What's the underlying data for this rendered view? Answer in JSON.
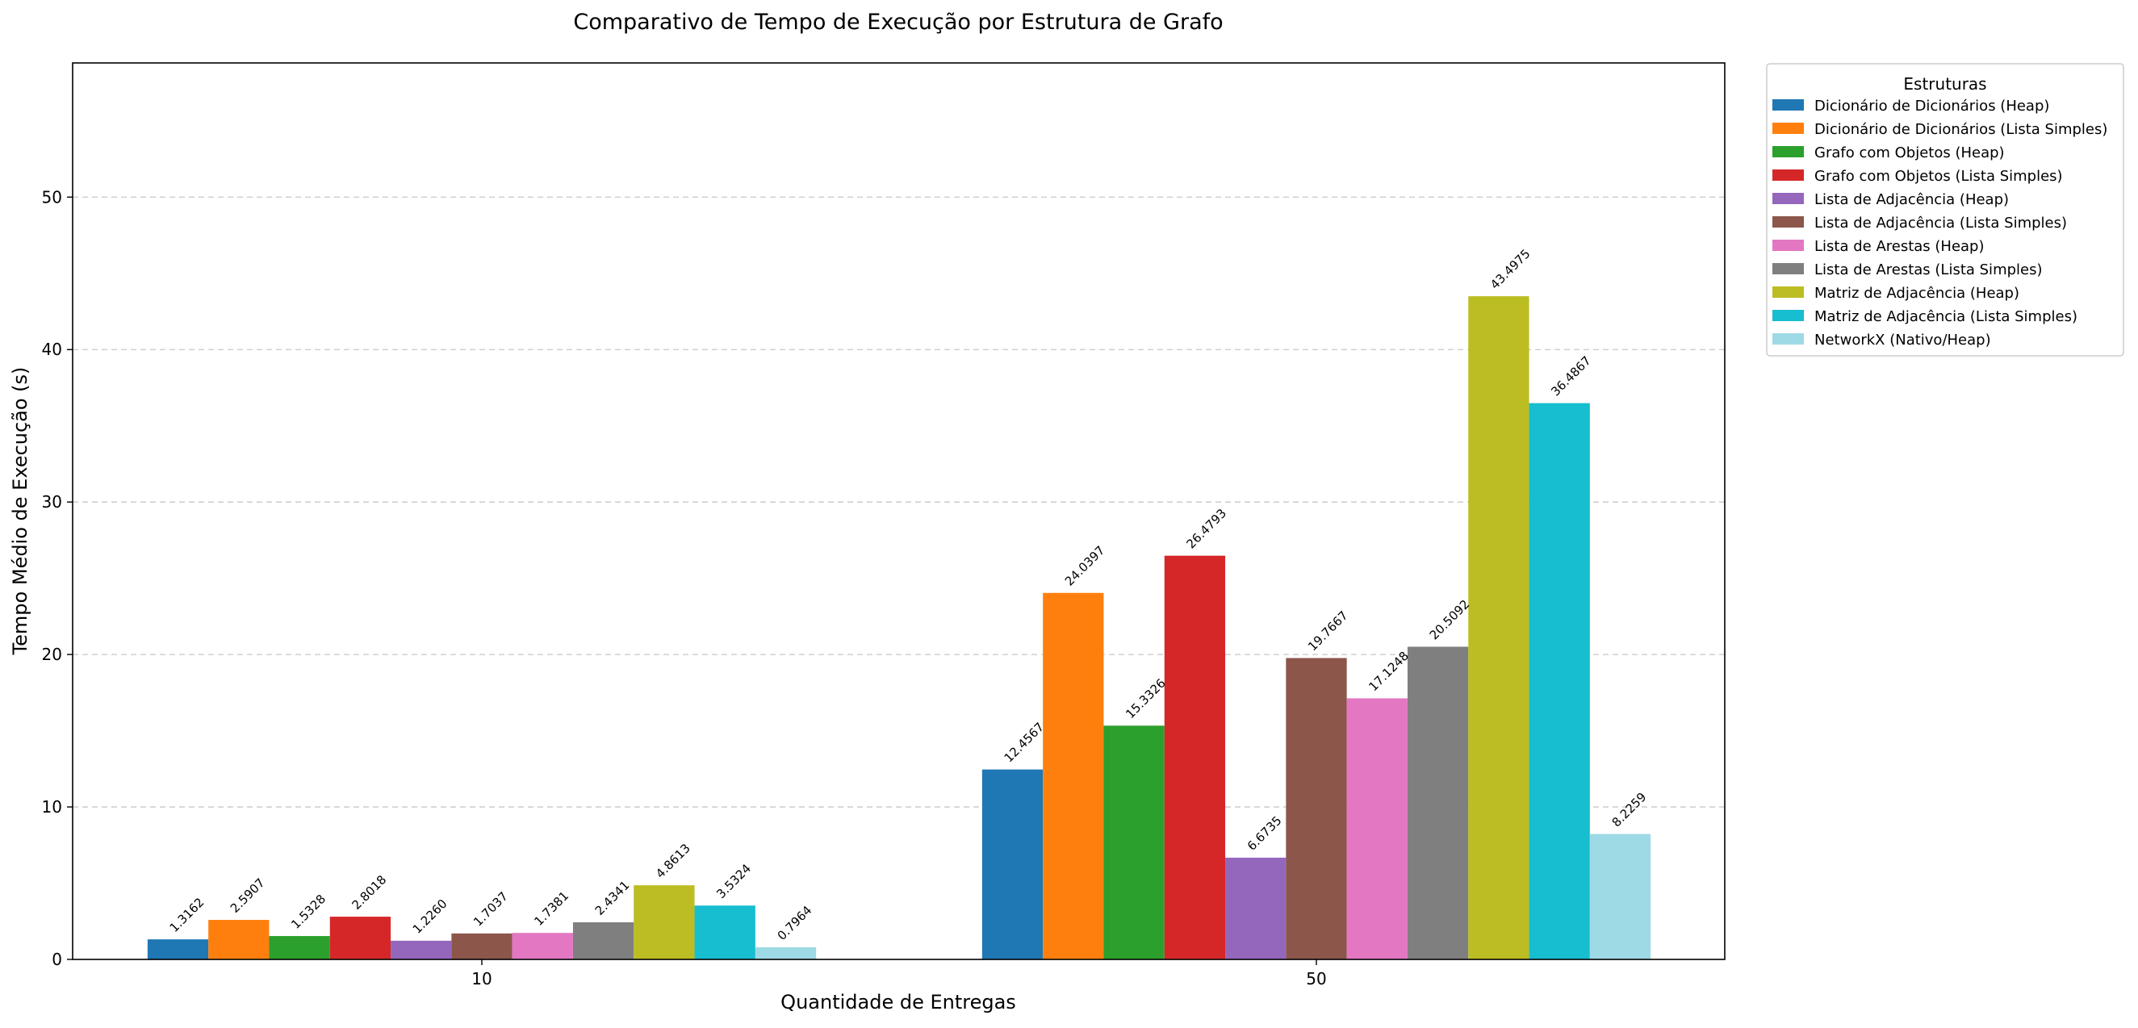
{
  "chart_data": {
    "type": "bar",
    "title": "Comparativo de Tempo de Execução por Estrutura de Grafo",
    "xlabel": "Quantidade de Entregas",
    "ylabel": "Tempo Médio de Execução (s)",
    "categories": [
      "10",
      "50"
    ],
    "ylim": [
      0,
      58.8
    ],
    "yticks": [
      0,
      10,
      20,
      30,
      40,
      50
    ],
    "grid": "y-dashed",
    "legend": {
      "title": "Estruturas",
      "placement": "outside-top-right"
    },
    "series": [
      {
        "name": "Dicionário de Dicionários (Heap)",
        "color": "#1f77b4",
        "values": [
          1.3162,
          12.4567
        ],
        "labels": [
          "1.3162",
          "12.4567"
        ]
      },
      {
        "name": "Dicionário de Dicionários (Lista Simples)",
        "color": "#ff7f0e",
        "values": [
          2.5907,
          24.0397
        ],
        "labels": [
          "2.5907",
          "24.0397"
        ]
      },
      {
        "name": "Grafo com Objetos (Heap)",
        "color": "#2ca02c",
        "values": [
          1.5328,
          15.3326
        ],
        "labels": [
          "1.5328",
          "15.3326"
        ]
      },
      {
        "name": "Grafo com Objetos (Lista Simples)",
        "color": "#d62728",
        "values": [
          2.8018,
          26.4793
        ],
        "labels": [
          "2.8018",
          "26.4793"
        ]
      },
      {
        "name": "Lista de Adjacência (Heap)",
        "color": "#9467bd",
        "values": [
          1.226,
          6.6735
        ],
        "labels": [
          "1.2260",
          "6.6735"
        ]
      },
      {
        "name": "Lista de Adjacência (Lista Simples)",
        "color": "#8c564b",
        "values": [
          1.7037,
          19.7667
        ],
        "labels": [
          "1.7037",
          "19.7667"
        ]
      },
      {
        "name": "Lista de Arestas (Heap)",
        "color": "#e377c2",
        "values": [
          1.7381,
          17.1248
        ],
        "labels": [
          "1.7381",
          "17.1248"
        ]
      },
      {
        "name": "Lista de Arestas (Lista Simples)",
        "color": "#7f7f7f",
        "values": [
          2.4341,
          20.5092
        ],
        "labels": [
          "2.4341",
          "20.5092"
        ]
      },
      {
        "name": "Matriz de Adjacência (Heap)",
        "color": "#bcbd22",
        "values": [
          4.8613,
          43.4975
        ],
        "labels": [
          "4.8613",
          "43.4975"
        ]
      },
      {
        "name": "Matriz de Adjacência (Lista Simples)",
        "color": "#17becf",
        "values": [
          3.5324,
          36.4867
        ],
        "labels": [
          "3.5324",
          "36.4867"
        ]
      },
      {
        "name": "NetworkX (Nativo/Heap)",
        "color": "#9edae5",
        "values": [
          0.7964,
          8.2259
        ],
        "labels": [
          "0.7964",
          "8.2259"
        ]
      }
    ]
  }
}
